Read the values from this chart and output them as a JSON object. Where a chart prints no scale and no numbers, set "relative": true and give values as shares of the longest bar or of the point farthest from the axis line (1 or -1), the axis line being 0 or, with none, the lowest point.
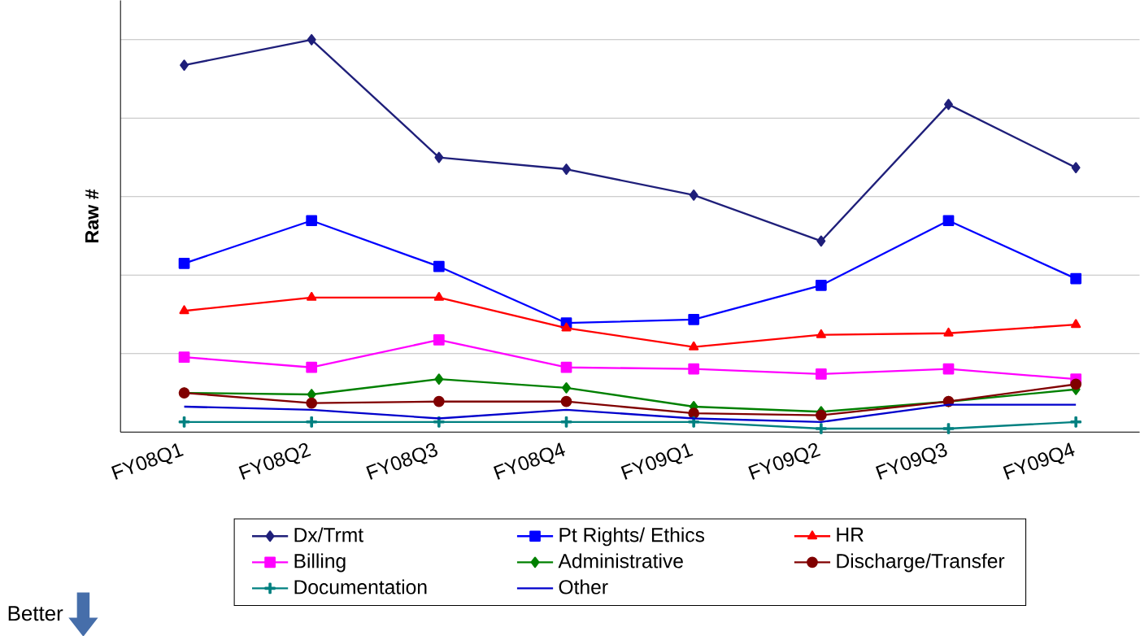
{
  "chart_data": {
    "type": "line",
    "relative": true,
    "ylabel": "Raw #",
    "grid": "y",
    "legend": "bottom",
    "categories": [
      "FY08Q1",
      "FY08Q2",
      "FY08Q3",
      "FY08Q4",
      "FY09Q1",
      "FY09Q2",
      "FY09Q3",
      "FY09Q4"
    ],
    "annotations": [
      "Better"
    ],
    "series": [
      {
        "name": "Dx/Trmt",
        "color": "#1f1f7a",
        "marker": "diamond",
        "values": [
          0.935,
          1,
          0.7,
          0.67,
          0.604,
          0.487,
          0.835,
          0.674
        ]
      },
      {
        "name": "Pt Rights/ Ethics",
        "color": "#0000ff",
        "marker": "square",
        "values": [
          0.43,
          0.539,
          0.422,
          0.278,
          0.287,
          0.374,
          0.539,
          0.391
        ]
      },
      {
        "name": "HR",
        "color": "#ff0000",
        "marker": "triangle",
        "values": [
          0.309,
          0.343,
          0.343,
          0.265,
          0.217,
          0.248,
          0.252,
          0.274
        ]
      },
      {
        "name": "Billing",
        "color": "#ff00ff",
        "marker": "square",
        "values": [
          0.191,
          0.165,
          0.235,
          0.165,
          0.161,
          0.148,
          0.161,
          0.135
        ]
      },
      {
        "name": "Administrative",
        "color": "#008000",
        "marker": "diamond",
        "values": [
          0.1,
          0.096,
          0.135,
          0.113,
          0.065,
          0.052,
          0.078,
          0.109
        ]
      },
      {
        "name": "Discharge/Transfer",
        "color": "#800000",
        "marker": "circle",
        "values": [
          0.1,
          0.074,
          0.078,
          0.078,
          0.048,
          0.043,
          0.078,
          0.122
        ]
      },
      {
        "name": "Documentation",
        "color": "#008080",
        "marker": "cross",
        "values": [
          0.026,
          0.026,
          0.026,
          0.026,
          0.026,
          0.009,
          0.009,
          0.026
        ]
      },
      {
        "name": "Other",
        "color": "#0000cc",
        "marker": "none",
        "values": [
          0.065,
          0.057,
          0.035,
          0.057,
          0.035,
          0.026,
          0.07,
          0.07
        ]
      }
    ]
  }
}
